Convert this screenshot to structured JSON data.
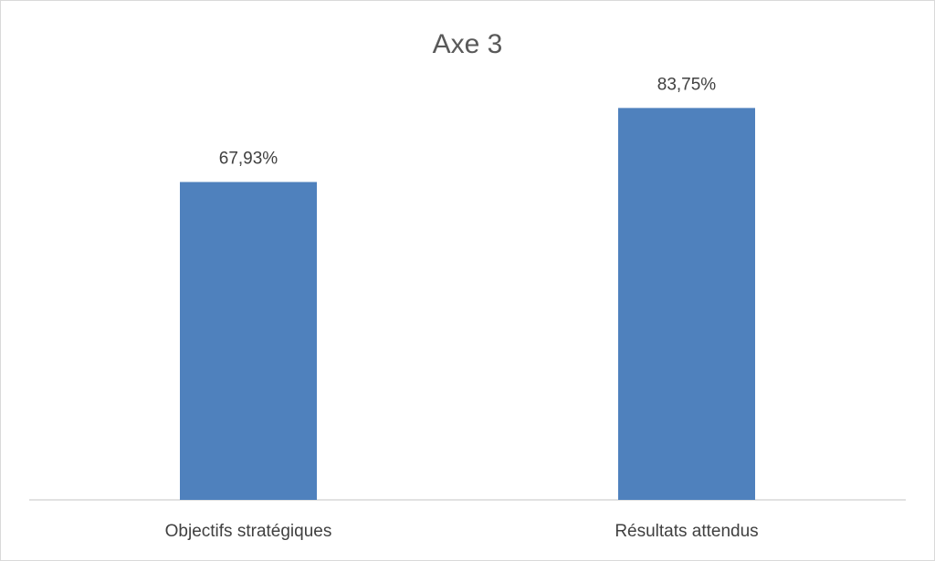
{
  "chart_data": {
    "type": "bar",
    "title": "Axe 3",
    "categories": [
      "Objectifs stratégiques",
      "Résultats attendus"
    ],
    "values": [
      67.93,
      83.75
    ],
    "value_labels": [
      "67,93%",
      "83,75%"
    ],
    "xlabel": "",
    "ylabel": "",
    "ylim": [
      0,
      100
    ],
    "grid": false,
    "legend": "none",
    "bar_color": "#4f81bd"
  }
}
